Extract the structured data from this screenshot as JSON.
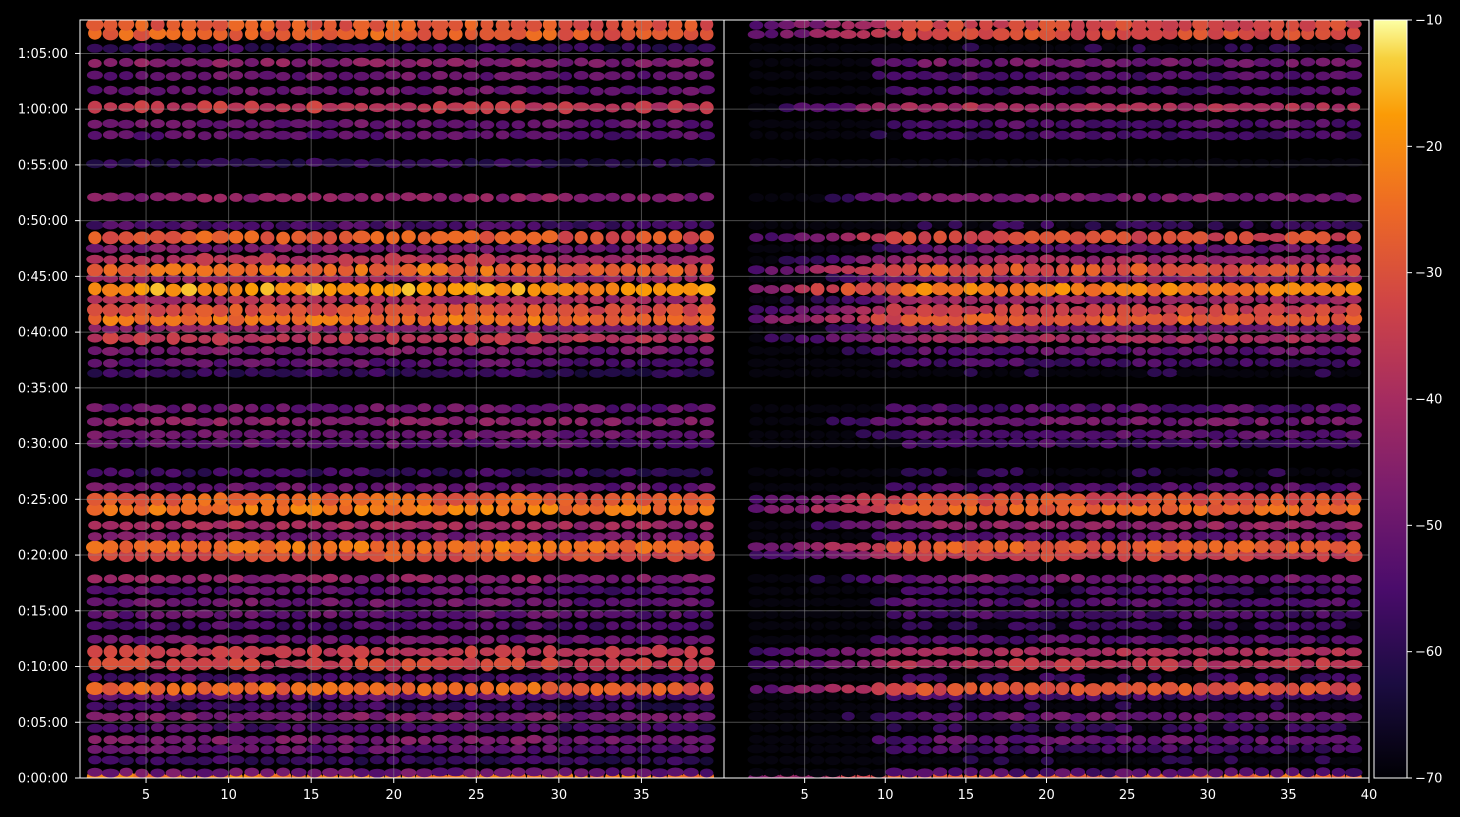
{
  "colors": {
    "background": "#000000",
    "axis": "#ffffff",
    "grid": "#8a8a8a",
    "colormap": "inferno"
  },
  "chart_data": {
    "type": "heatmap",
    "title": "",
    "panels": [
      {
        "name": "",
        "xlim": [
          1,
          40
        ],
        "x_ticks": [
          5,
          10,
          15,
          20,
          25,
          30,
          35
        ],
        "x_tick_labels": [
          "5",
          "10",
          "15",
          "20",
          "25",
          "30",
          "35"
        ],
        "intensity": "strong"
      },
      {
        "name": "",
        "xlim": [
          0,
          40
        ],
        "x_ticks": [
          5,
          10,
          15,
          20,
          25,
          30,
          35,
          40
        ],
        "x_tick_labels": [
          "5",
          "10",
          "15",
          "20",
          "25",
          "30",
          "35",
          "40"
        ],
        "intensity": "thresholded"
      }
    ],
    "y_axis": {
      "unit": "time",
      "ylim_seconds": [
        0,
        4080
      ],
      "ticks_seconds": [
        0,
        300,
        600,
        900,
        1200,
        1500,
        1800,
        2100,
        2400,
        2700,
        3000,
        3300,
        3600,
        3900
      ],
      "tick_labels": [
        "0:00:00",
        "0:05:00",
        "0:10:00",
        "0:15:00",
        "0:20:00",
        "0:25:00",
        "0:30:00",
        "0:35:00",
        "0:40:00",
        "0:45:00",
        "0:50:00",
        "0:55:00",
        "1:00:00",
        "1:05:00"
      ]
    },
    "colorbar": {
      "range": [
        -70,
        -10
      ],
      "ticks": [
        -10,
        -20,
        -30,
        -40,
        -50,
        -60,
        -70
      ],
      "tick_labels": [
        "−10",
        "−20",
        "−30",
        "−40",
        "−50",
        "−60",
        "−70"
      ]
    },
    "bands": [
      {
        "t": 4,
        "level": -22
      },
      {
        "t": 30,
        "level": -50
      },
      {
        "t": 95,
        "level": -58
      },
      {
        "t": 155,
        "level": -52
      },
      {
        "t": 205,
        "level": -48
      },
      {
        "t": 270,
        "level": -55
      },
      {
        "t": 330,
        "level": -47
      },
      {
        "t": 385,
        "level": -58
      },
      {
        "t": 440,
        "level": -52
      },
      {
        "t": 480,
        "level": -26
      },
      {
        "t": 540,
        "level": -55
      },
      {
        "t": 612,
        "level": -33
      },
      {
        "t": 680,
        "level": -35
      },
      {
        "t": 745,
        "level": -50
      },
      {
        "t": 820,
        "level": -55
      },
      {
        "t": 880,
        "level": -52
      },
      {
        "t": 945,
        "level": -50
      },
      {
        "t": 1010,
        "level": -53
      },
      {
        "t": 1072,
        "level": -45
      },
      {
        "t": 1200,
        "level": -30
      },
      {
        "t": 1245,
        "level": -24
      },
      {
        "t": 1300,
        "level": -48
      },
      {
        "t": 1360,
        "level": -40
      },
      {
        "t": 1448,
        "level": -23
      },
      {
        "t": 1500,
        "level": -27
      },
      {
        "t": 1565,
        "level": -50
      },
      {
        "t": 1645,
        "level": -57
      },
      {
        "t": 1800,
        "level": -52
      },
      {
        "t": 1850,
        "level": -49
      },
      {
        "t": 1920,
        "level": -45
      },
      {
        "t": 1990,
        "level": -50
      },
      {
        "t": 2180,
        "level": -58
      },
      {
        "t": 2235,
        "level": -52
      },
      {
        "t": 2300,
        "level": -48
      },
      {
        "t": 2365,
        "level": -36
      },
      {
        "t": 2420,
        "level": -45
      },
      {
        "t": 2470,
        "level": -24
      },
      {
        "t": 2520,
        "level": -30
      },
      {
        "t": 2575,
        "level": -40
      },
      {
        "t": 2630,
        "level": -18
      },
      {
        "t": 2690,
        "level": -42
      },
      {
        "t": 2735,
        "level": -25
      },
      {
        "t": 2790,
        "level": -38
      },
      {
        "t": 2850,
        "level": -48
      },
      {
        "t": 2910,
        "level": -28
      },
      {
        "t": 2975,
        "level": -55
      },
      {
        "t": 3125,
        "level": -44
      },
      {
        "t": 3310,
        "level": -60
      },
      {
        "t": 3460,
        "level": -52
      },
      {
        "t": 3520,
        "level": -50
      },
      {
        "t": 3610,
        "level": -35
      },
      {
        "t": 3700,
        "level": -50
      },
      {
        "t": 3780,
        "level": -50
      },
      {
        "t": 3850,
        "level": -45
      },
      {
        "t": 3930,
        "level": -58
      },
      {
        "t": 4005,
        "level": -27
      },
      {
        "t": 4055,
        "level": -28
      }
    ]
  }
}
